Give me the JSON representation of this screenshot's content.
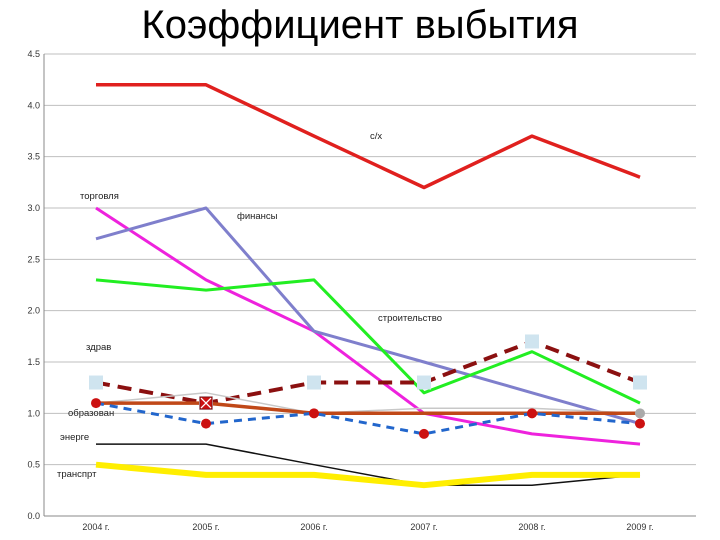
{
  "title": "Коэффициент выбытия",
  "chart_data": {
    "type": "line",
    "title": "Коэффициент выбытия",
    "categories": [
      "2004 г.",
      "2005 г.",
      "2006 г.",
      "2007 г.",
      "2008 г.",
      "2009 г."
    ],
    "yticks": [
      "0.0",
      "0.5",
      "1.0",
      "1.5",
      "2.0",
      "2.5",
      "3.0",
      "3.5",
      "4.0",
      "4.5"
    ],
    "ylim": [
      0,
      4.5
    ],
    "grid": true,
    "series": [
      {
        "name": "с/х",
        "values": [
          4.2,
          4.2,
          3.7,
          3.2,
          3.7,
          3.3
        ],
        "color": "#e0201e",
        "width": 3.5,
        "dash": "",
        "marker": "none",
        "label_at": [
          370,
          139
        ]
      },
      {
        "name": "торговля",
        "values": [
          3.0,
          2.3,
          1.8,
          1.0,
          0.8,
          0.7
        ],
        "color": "#ee22dd",
        "width": 3,
        "dash": "",
        "marker": "none",
        "label_at": [
          80,
          199
        ]
      },
      {
        "name": "финансы",
        "values": [
          2.7,
          3.0,
          1.8,
          1.5,
          1.2,
          0.9
        ],
        "color": "#7f7fcc",
        "width": 3,
        "dash": "",
        "marker": "none",
        "label_at": [
          237,
          219
        ]
      },
      {
        "name": "строительство",
        "values": [
          2.3,
          2.2,
          2.3,
          1.2,
          1.6,
          1.1
        ],
        "color": "#22ee22",
        "width": 3,
        "dash": "",
        "marker": "none",
        "label_at": [
          378,
          321
        ]
      },
      {
        "name": "здрав",
        "values": [
          1.3,
          1.1,
          1.3,
          1.3,
          1.7,
          1.3
        ],
        "color": "#8b1010",
        "width": 4,
        "dash": "14 8",
        "marker": "none",
        "label_at": [
          86,
          350
        ]
      },
      {
        "name": "",
        "values": [
          1.3,
          1.1,
          1.3,
          1.3,
          1.7,
          1.3
        ],
        "color": "#cfe4ef",
        "width": 0,
        "dash": "",
        "marker": "square-light"
      },
      {
        "name": "",
        "values": [
          1.1,
          1.2,
          1.0,
          1.05,
          1.05,
          1.0
        ],
        "color": "#c8c8c8",
        "width": 1.5,
        "dash": "",
        "marker": "none"
      },
      {
        "name": "",
        "values": [
          1.1,
          1.1,
          1.0,
          1.0,
          1.0,
          1.0
        ],
        "color": "#c04818",
        "width": 3.5,
        "dash": "",
        "marker": "none"
      },
      {
        "name": "образован",
        "values": [
          1.1,
          0.9,
          1.0,
          0.8,
          1.0,
          0.9
        ],
        "color": "#2266cc",
        "width": 3,
        "dash": "8 6",
        "marker": "circle",
        "marker_color": "#cc1111",
        "label_at": [
          68,
          416
        ]
      },
      {
        "name": "энерге",
        "values": [
          0.7,
          0.7,
          0.5,
          0.3,
          0.3,
          0.4
        ],
        "color": "#111111",
        "width": 1.5,
        "dash": "",
        "marker": "none",
        "label_at": [
          60,
          440
        ]
      },
      {
        "name": "транспрт",
        "values": [
          0.5,
          0.4,
          0.4,
          0.3,
          0.4,
          0.4
        ],
        "color": "#ffee00",
        "width": 6,
        "dash": "",
        "marker": "none",
        "label_at": [
          57,
          477
        ]
      }
    ],
    "extra_markers": [
      {
        "x_index": 1,
        "value": 1.1,
        "shape": "square-x",
        "color": "#cc1111"
      },
      {
        "x_index": 5,
        "value": 1.0,
        "shape": "circle",
        "color": "#aaaaaa"
      }
    ]
  }
}
